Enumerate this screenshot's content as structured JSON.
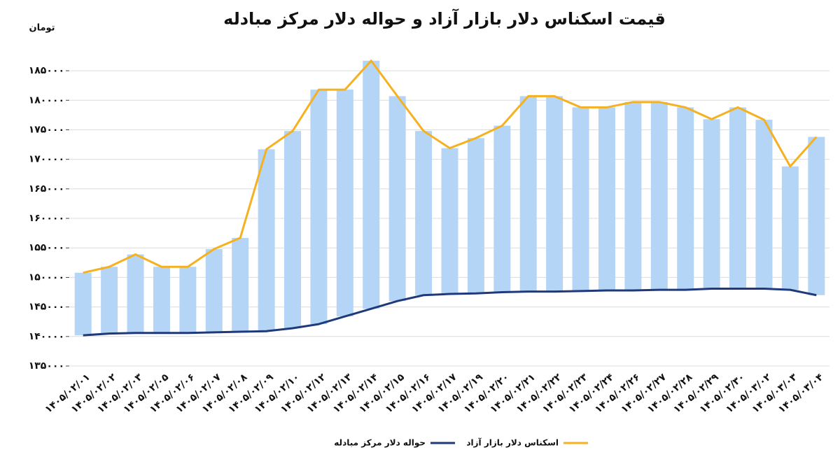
{
  "chart_data": {
    "type": "line",
    "title": "قیمت اسکناس دلار بازار آزاد و حواله دلار مرکز مبادله",
    "unit_label": "تومان",
    "categories": [
      "۱۴۰۵/۰۲/۰۱",
      "۱۴۰۵/۰۲/۰۲",
      "۱۴۰۵/۰۲/۰۳",
      "۱۴۰۵/۰۲/۰۵",
      "۱۴۰۵/۰۲/۰۶",
      "۱۴۰۵/۰۲/۰۷",
      "۱۴۰۵/۰۲/۰۸",
      "۱۴۰۵/۰۲/۰۹",
      "۱۴۰۵/۰۲/۱۰",
      "۱۴۰۵/۰۲/۱۲",
      "۱۴۰۵/۰۲/۱۳",
      "۱۴۰۵/۰۲/۱۴",
      "۱۴۰۵/۰۲/۱۵",
      "۱۴۰۵/۰۲/۱۶",
      "۱۴۰۵/۰۲/۱۷",
      "۱۴۰۵/۰۲/۱۹",
      "۱۴۰۵/۰۲/۲۰",
      "۱۴۰۵/۰۲/۲۱",
      "۱۴۰۵/۰۲/۲۲",
      "۱۴۰۵/۰۲/۲۳",
      "۱۴۰۵/۰۲/۲۴",
      "۱۴۰۵/۰۲/۲۶",
      "۱۴۰۵/۰۲/۲۷",
      "۱۴۰۵/۰۲/۲۸",
      "۱۴۰۵/۰۲/۲۹",
      "۱۴۰۵/۰۲/۳۰",
      "۱۴۰۵/۰۳/۰۲",
      "۱۴۰۵/۰۳/۰۳",
      "۱۴۰۵/۰۳/۰۴"
    ],
    "series": [
      {
        "name": "حواله دلار مرکز مبادله",
        "color": "#1f3a7a",
        "values": [
          140200,
          140500,
          140600,
          140600,
          140600,
          140700,
          140800,
          140900,
          141400,
          142100,
          143400,
          144700,
          146000,
          147000,
          147200,
          147300,
          147500,
          147600,
          147600,
          147700,
          147800,
          147800,
          147900,
          147900,
          148100,
          148100,
          148100,
          147900,
          147000
        ]
      },
      {
        "name": "اسکناس دلار بازار آزاد",
        "color": "#f5b120",
        "values": [
          150800,
          151800,
          153900,
          151800,
          151800,
          154800,
          156700,
          171700,
          174800,
          181800,
          181800,
          186700,
          180700,
          174800,
          171900,
          173600,
          175700,
          180700,
          180700,
          178800,
          178800,
          179700,
          179700,
          178800,
          176800,
          178800,
          176700,
          168800,
          173800
        ]
      }
    ],
    "range_bar_color": "#b5d5f6",
    "ylim": [
      135000,
      187500
    ],
    "yticks": [
      {
        "value": 135000,
        "label": "۱۳۵۰۰۰"
      },
      {
        "value": 140000,
        "label": "۱۴۰۰۰۰"
      },
      {
        "value": 145000,
        "label": "۱۴۵۰۰۰"
      },
      {
        "value": 150000,
        "label": "۱۵۰۰۰۰"
      },
      {
        "value": 155000,
        "label": "۱۵۵۰۰۰"
      },
      {
        "value": 160000,
        "label": "۱۶۰۰۰۰"
      },
      {
        "value": 165000,
        "label": "۱۶۵۰۰۰"
      },
      {
        "value": 170000,
        "label": "۱۷۰۰۰۰"
      },
      {
        "value": 175000,
        "label": "۱۷۵۰۰۰"
      },
      {
        "value": 180000,
        "label": "۱۸۰۰۰۰"
      },
      {
        "value": 185000,
        "label": "۱۸۵۰۰۰"
      }
    ],
    "grid": true
  }
}
